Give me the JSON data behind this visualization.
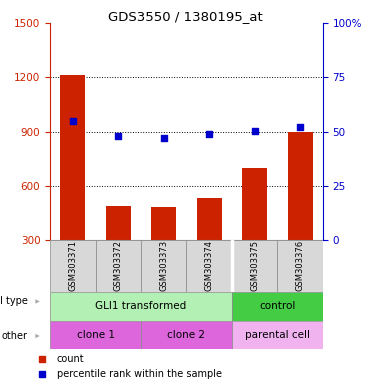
{
  "title": "GDS3550 / 1380195_at",
  "samples": [
    "GSM303371",
    "GSM303372",
    "GSM303373",
    "GSM303374",
    "GSM303375",
    "GSM303376"
  ],
  "bar_values": [
    1210,
    490,
    480,
    530,
    700,
    900
  ],
  "dot_values_left": [
    960,
    875,
    865,
    885,
    905,
    925
  ],
  "ylim_left": [
    300,
    1500
  ],
  "ylim_right": [
    0,
    100
  ],
  "yticks_left": [
    300,
    600,
    900,
    1200,
    1500
  ],
  "yticks_right": [
    0,
    25,
    50,
    75,
    100
  ],
  "ytick_right_labels": [
    "0",
    "25",
    "50",
    "75",
    "100%"
  ],
  "bar_color": "#cc2200",
  "dot_color": "#0000cc",
  "left_axis_color": "#cc2200",
  "right_axis_color": "#0000cc",
  "grid_lines": [
    600,
    900,
    1200
  ],
  "cell_type_labels": [
    "GLI1 transformed",
    "control"
  ],
  "cell_type_colors": [
    "#b3f0b3",
    "#44cc44"
  ],
  "other_labels": [
    "clone 1",
    "clone 2",
    "parental cell"
  ],
  "other_colors_bright": [
    "#dd66dd",
    "#dd66dd"
  ],
  "other_color_light": "#f0b3f0",
  "row_label_cell": "cell type",
  "row_label_other": "other",
  "legend_count_color": "#cc2200",
  "legend_dot_color": "#0000cc",
  "bg_color": "#d8d8d8",
  "spine_color": "#888888"
}
